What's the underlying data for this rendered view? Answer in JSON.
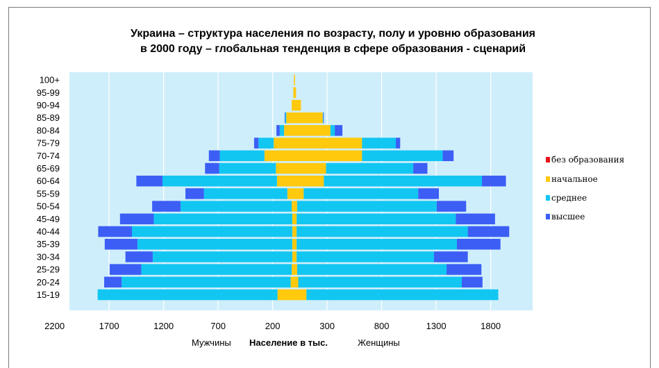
{
  "chart_data": {
    "type": "bar",
    "subtype": "population-pyramid",
    "title": "Украина – структура населения по возрасту, полу и уровню образования",
    "subtitle": "в 2000 году – глобальная тенденция в сфере образования - сценарий",
    "xlabel": "Население в тыс.",
    "left_label": "Мужчины",
    "right_label": "Женщины",
    "x_tick_labels": [
      "2200",
      "1700",
      "1200",
      "700",
      "200",
      "300",
      "800",
      "1300",
      "1800"
    ],
    "xlim": [
      -2200,
      2200
    ],
    "grid": true,
    "legend_position": "right",
    "categories": [
      "100+",
      "95-99",
      "90-94",
      "85-89",
      "80-84",
      "75-79",
      "70-74",
      "65-69",
      "60-64",
      "55-59",
      "50-54",
      "45-49",
      "40-44",
      "35-39",
      "30-34",
      "25-29",
      "20-24",
      "15-19"
    ],
    "series": [
      {
        "name": "без образования",
        "color": "#e8141b",
        "male": [
          0,
          0,
          0,
          0,
          0,
          0,
          0,
          0,
          0,
          0,
          0,
          0,
          0,
          0,
          0,
          0,
          0,
          0
        ],
        "female": [
          0,
          0,
          0,
          0,
          0,
          0,
          0,
          0,
          0,
          0,
          0,
          0,
          0,
          0,
          0,
          0,
          0,
          0
        ]
      },
      {
        "name": "начальное",
        "color": "#ffc90e",
        "male": [
          5,
          10,
          25,
          75,
          95,
          190,
          275,
          170,
          160,
          65,
          25,
          20,
          20,
          20,
          20,
          25,
          35,
          155
        ],
        "female": [
          5,
          15,
          60,
          260,
          330,
          620,
          620,
          290,
          270,
          85,
          25,
          20,
          20,
          20,
          20,
          25,
          35,
          110
        ]
      },
      {
        "name": "среднее",
        "color": "#12c6f2",
        "male": [
          0,
          0,
          0,
          10,
          40,
          140,
          410,
          520,
          1050,
          765,
          1020,
          1270,
          1470,
          1420,
          1280,
          1380,
          1550,
          1650
        ],
        "female": [
          0,
          0,
          0,
          5,
          40,
          310,
          740,
          800,
          1450,
          1050,
          1280,
          1460,
          1570,
          1470,
          1260,
          1370,
          1500,
          1760
        ]
      },
      {
        "name": "высшее",
        "color": "#3c5ef5",
        "male": [
          0,
          0,
          0,
          5,
          30,
          40,
          100,
          130,
          240,
          170,
          260,
          310,
          310,
          300,
          250,
          290,
          160,
          0
        ],
        "female": [
          0,
          0,
          0,
          5,
          70,
          40,
          100,
          130,
          220,
          190,
          270,
          360,
          380,
          400,
          310,
          320,
          190,
          0
        ]
      }
    ]
  }
}
